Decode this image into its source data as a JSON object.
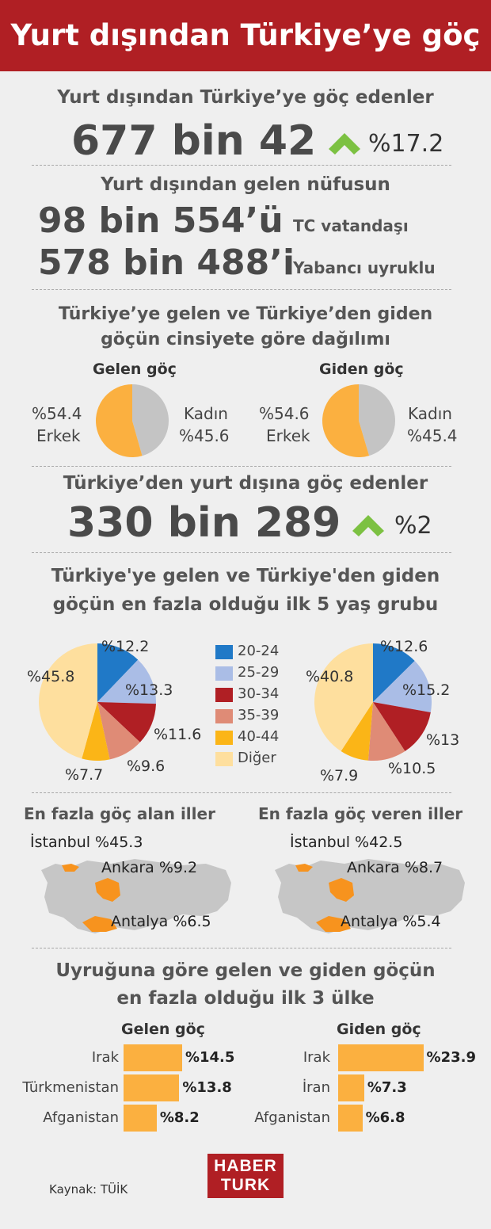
{
  "header": {
    "title": "Yurt dışından Türkiye’ye göç"
  },
  "section1": {
    "title": "Yurt dışından Türkiye’ye göç edenler",
    "value": "677 bin 42",
    "change": "%17.2"
  },
  "section2": {
    "title": "Yurt dışından gelen nüfusun",
    "rows": [
      {
        "value": "98 bin 554’ü",
        "label": "TC vatandaşı"
      },
      {
        "value": "578 bin 488’i",
        "label": "Yabancı uyruklu"
      }
    ]
  },
  "gender": {
    "title_line1": "Türkiye’ye gelen ve Türkiye’den giden",
    "title_line2": "göçün cinsiyete göre dağılımı",
    "incoming": {
      "title": "Gelen göç",
      "male_pct": "%54.4",
      "male_label": "Erkek",
      "female_label": "Kadın",
      "female_pct": "%45.6"
    },
    "outgoing": {
      "title": "Giden göç",
      "male_pct": "%54.6",
      "male_label": "Erkek",
      "female_label": "Kadın",
      "female_pct": "%45.4"
    }
  },
  "section4": {
    "title": "Türkiye’den yurt dışına göç edenler",
    "value": "330 bin 289",
    "change": "%2"
  },
  "age": {
    "title_line1": "Türkiye'ye gelen ve Türkiye'den giden",
    "title_line2": "göçün en fazla olduğu ilk 5 yaş grubu",
    "legend": [
      "20-24",
      "25-29",
      "30-34",
      "35-39",
      "40-44",
      "Diğer"
    ]
  },
  "provinces": {
    "left": {
      "title": "En fazla göç alan iller",
      "istanbul": "İstanbul %45.3",
      "ankara": "Ankara %9.2",
      "antalya": "Antalya %6.5"
    },
    "right": {
      "title": "En fazla göç veren iller",
      "istanbul": "İstanbul %42.5",
      "ankara": "Ankara %8.7",
      "antalya": "Antalya %5.4"
    }
  },
  "nationality": {
    "title_line1": "Uyruğuna göre gelen ve giden göçün",
    "title_line2": "en fazla olduğu ilk 3 ülke",
    "incoming_title": "Gelen göç",
    "outgoing_title": "Giden göç"
  },
  "footer": {
    "source": "Kaynak: TÜİK",
    "logo_line1": "HABER",
    "logo_line2": "TURK"
  },
  "colors": {
    "header": "#b01f24",
    "arrow": "#7cc142",
    "female": "#c4c4c4",
    "male": "#fbb040",
    "bar": "#fbb040"
  },
  "chart_data": [
    {
      "type": "pie",
      "series": [
        {
          "name": "Gelen göç",
          "labels": [
            "Kadın",
            "Erkek"
          ],
          "values": [
            45.6,
            54.4
          ]
        }
      ]
    },
    {
      "type": "pie",
      "series": [
        {
          "name": "Giden göç",
          "labels": [
            "Kadın",
            "Erkek"
          ],
          "values": [
            45.4,
            54.6
          ]
        }
      ]
    },
    {
      "type": "pie",
      "categories": [
        "20-24",
        "25-29",
        "30-34",
        "35-39",
        "40-44",
        "Diğer"
      ],
      "values": [
        12.2,
        13.3,
        11.6,
        9.6,
        7.7,
        45.8
      ],
      "labels": [
        "%12.2",
        "%13.3",
        "%11.6",
        "%9.6",
        "%7.7",
        "%45.8"
      ],
      "colors": [
        "#2079c7",
        "#aabde6",
        "#b01f24",
        "#df8b76",
        "#fbb517",
        "#fedf9e"
      ]
    },
    {
      "type": "pie",
      "categories": [
        "20-24",
        "25-29",
        "30-34",
        "35-39",
        "40-44",
        "Diğer"
      ],
      "values": [
        12.6,
        15.2,
        13,
        10.5,
        7.9,
        40.8
      ],
      "labels": [
        "%12.6",
        "%15.2",
        "%13",
        "%10.5",
        "%7.9",
        "%40.8"
      ],
      "colors": [
        "#2079c7",
        "#aabde6",
        "#b01f24",
        "#df8b76",
        "#fbb517",
        "#fedf9e"
      ]
    },
    {
      "type": "bar",
      "series": [
        {
          "name": "Gelen göç",
          "categories": [
            "Irak",
            "Türkmenistan",
            "Afganistan"
          ],
          "values": [
            14.5,
            13.8,
            8.2
          ],
          "labels": [
            "%14.5",
            "%13.8",
            "%8.2"
          ]
        }
      ]
    },
    {
      "type": "bar",
      "series": [
        {
          "name": "Giden göç",
          "categories": [
            "Irak",
            "İran",
            "Afganistan"
          ],
          "values": [
            23.9,
            7.3,
            6.8
          ],
          "labels": [
            "%23.9",
            "%7.3",
            "%6.8"
          ]
        }
      ]
    }
  ]
}
